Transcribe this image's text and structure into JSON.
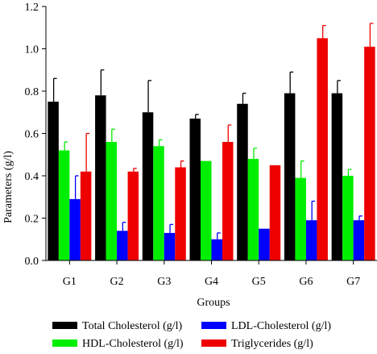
{
  "chart_data": {
    "type": "bar",
    "xlabel": "Groups",
    "ylabel": "Parameters (g/l)",
    "categories": [
      "G1",
      "G2",
      "G3",
      "G4",
      "G5",
      "G6",
      "G7"
    ],
    "ylim": [
      0,
      1.2
    ],
    "yticks": [
      "0.0",
      "0.2",
      "0.4",
      "0.6",
      "0.8",
      "1.0",
      "1.2"
    ],
    "legend_position": "bottom",
    "series": [
      {
        "name": "Total Cholesterol (g/l)",
        "color": "#000000",
        "values": [
          0.75,
          0.78,
          0.7,
          0.67,
          0.74,
          0.79,
          0.79
        ],
        "errors": [
          0.11,
          0.12,
          0.15,
          0.02,
          0.05,
          0.1,
          0.06
        ]
      },
      {
        "name": "HDL-Cholesterol (g/l)",
        "color": "#00ee00",
        "values": [
          0.52,
          0.56,
          0.54,
          0.47,
          0.48,
          0.39,
          0.4
        ],
        "errors": [
          0.04,
          0.06,
          0.03,
          0.0,
          0.05,
          0.08,
          0.03
        ]
      },
      {
        "name": "LDL-Cholesterol (g/l)",
        "color": "#0000ff",
        "values": [
          0.29,
          0.14,
          0.13,
          0.1,
          0.15,
          0.19,
          0.19
        ],
        "errors": [
          0.11,
          0.04,
          0.04,
          0.03,
          0.0,
          0.09,
          0.02
        ]
      },
      {
        "name": "Triglycerides (g/l)",
        "color": "#ee0000",
        "values": [
          0.42,
          0.42,
          0.44,
          0.56,
          0.45,
          1.05,
          1.01
        ],
        "errors": [
          0.18,
          0.015,
          0.03,
          0.08,
          0.0,
          0.06,
          0.11
        ]
      }
    ]
  }
}
